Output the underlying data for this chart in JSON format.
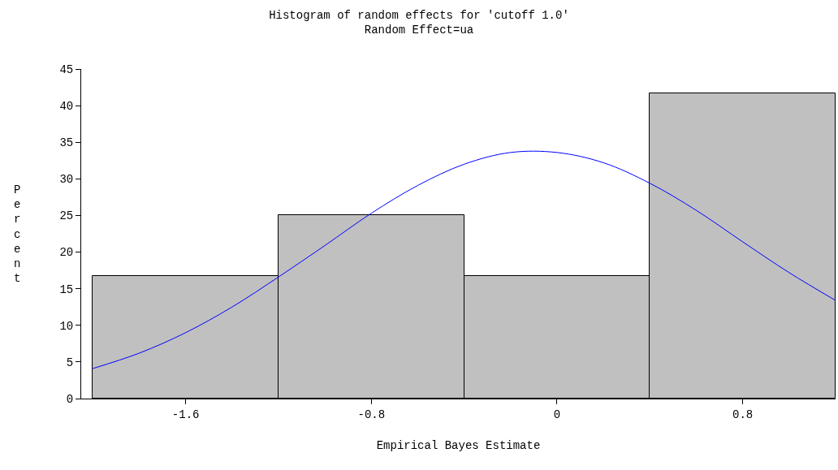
{
  "chart_data": {
    "type": "histogram",
    "title": "Histogram of random effects for 'cutoff 1.0'",
    "subtitle": "Random Effect=ua",
    "xlabel": "Empirical Bayes Estimate",
    "ylabel": "Percent",
    "bins": [
      -2.0,
      -1.2,
      -0.4,
      0.4,
      1.2
    ],
    "values": [
      16.7,
      25,
      16.7,
      41.7
    ],
    "color": "#c0c0c0",
    "series": [
      {
        "type": "line",
        "color": "#0000ff",
        "x": [
          -2.0,
          -1.8,
          -1.6,
          -1.4,
          -1.2,
          -1.0,
          -0.8,
          -0.6,
          -0.4,
          -0.2,
          0,
          0.2,
          0.4,
          0.6,
          0.8,
          1.0,
          1.2
        ],
        "values": [
          4.1,
          6.2,
          9.0,
          12.5,
          16.6,
          20.9,
          25.3,
          29.1,
          32.0,
          33.6,
          33.6,
          32.2,
          29.4,
          25.7,
          21.4,
          17.2,
          13.4
        ]
      }
    ],
    "xlim": [
      -2.05,
      1.2
    ],
    "xticks": [
      -1.6,
      -0.8,
      0,
      0.8
    ],
    "ylim": [
      0,
      45
    ],
    "yticks": [
      0,
      5,
      10,
      15,
      20,
      25,
      30,
      35,
      40,
      45
    ]
  }
}
